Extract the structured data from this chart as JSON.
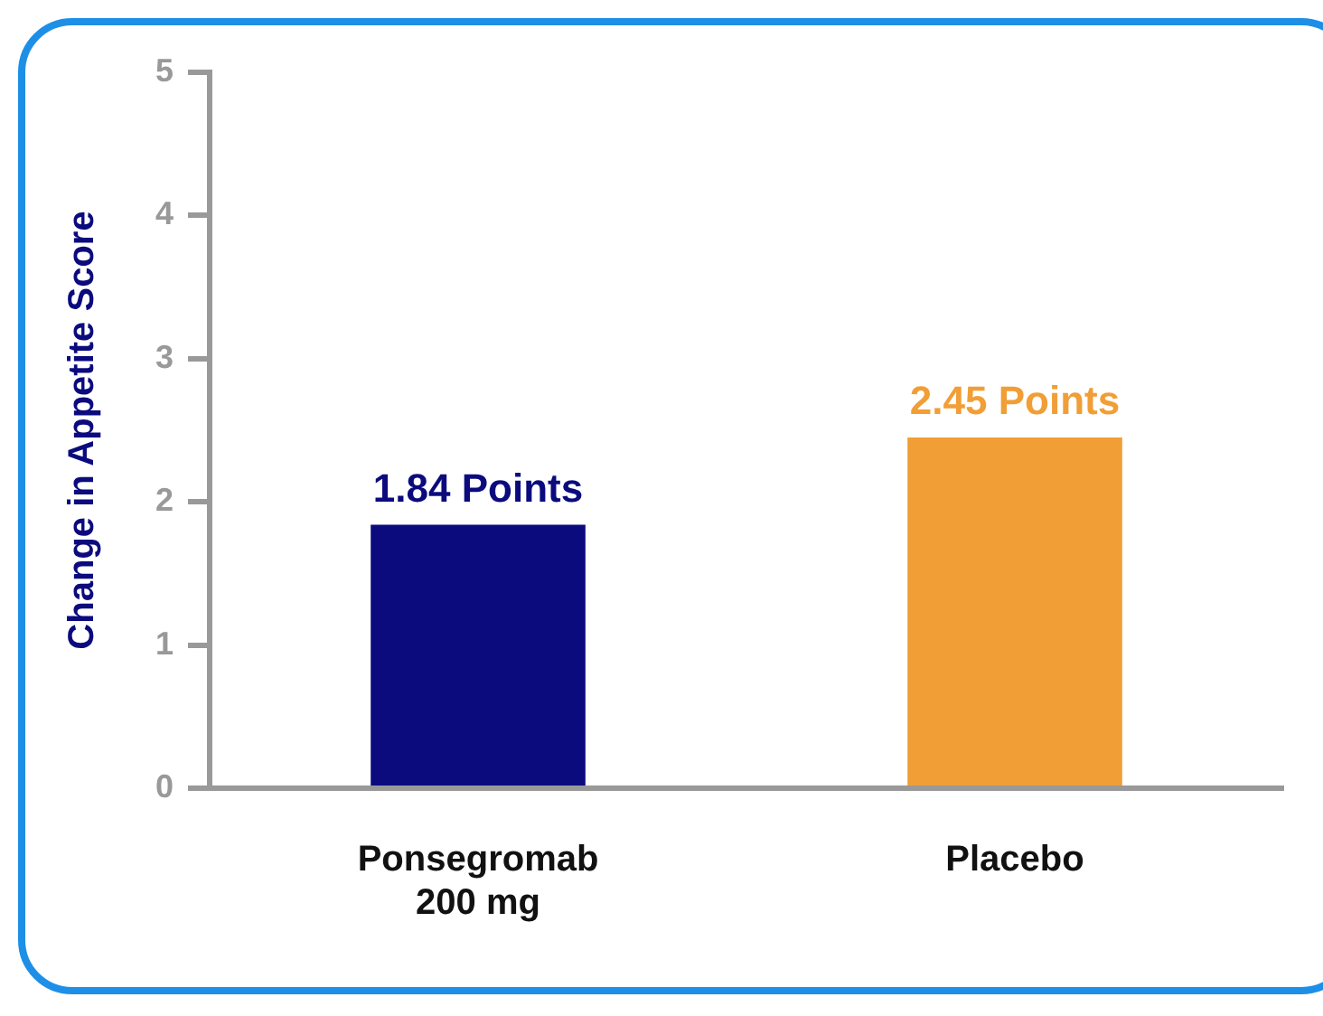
{
  "chart_data": {
    "type": "bar",
    "ylabel": "Change in Appetite Score",
    "categories": [
      "Ponsegromab\n200 mg",
      "Placebo"
    ],
    "values": [
      1.84,
      2.45
    ],
    "colors": [
      "#0b0b7e",
      "#f19e36"
    ],
    "value_labels": [
      "1.84 Points",
      "2.45 Points"
    ],
    "ylim": [
      0,
      5
    ],
    "yticks": [
      0,
      1,
      2,
      3,
      4,
      5
    ],
    "grid": false,
    "legend": false
  }
}
